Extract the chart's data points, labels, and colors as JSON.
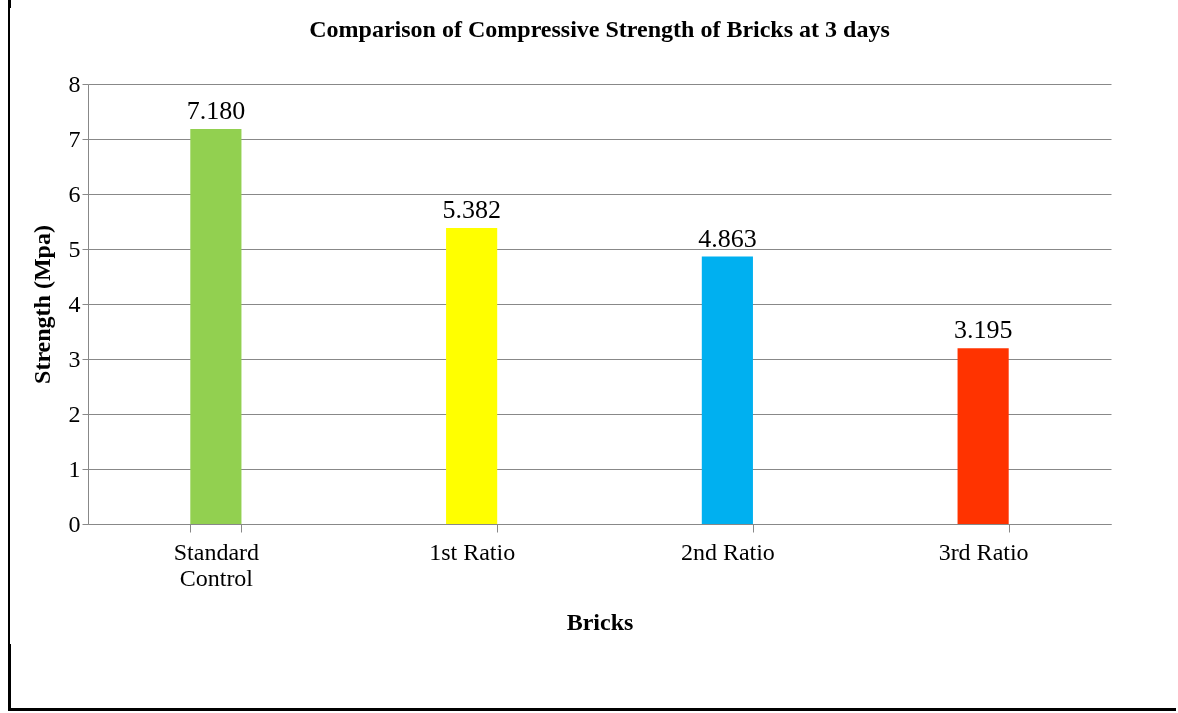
{
  "chart_data": {
    "type": "bar",
    "title": "Comparison of Compressive Strength of Bricks at 3 days",
    "xlabel": "Bricks",
    "ylabel": "Strength (Mpa)",
    "categories": [
      "Standard Control",
      "1st Ratio",
      "2nd Ratio",
      "3rd Ratio"
    ],
    "values": [
      7.18,
      5.382,
      4.863,
      3.195
    ],
    "value_labels": [
      "7.180",
      "5.382",
      "4.863",
      "3.195"
    ],
    "colors": [
      "#92d050",
      "#ffff00",
      "#00b0f0",
      "#ff3300"
    ],
    "ylim": [
      0,
      8
    ],
    "yticks": [
      0,
      1,
      2,
      3,
      4,
      5,
      6,
      7,
      8
    ],
    "grid": "y",
    "legend": false
  }
}
